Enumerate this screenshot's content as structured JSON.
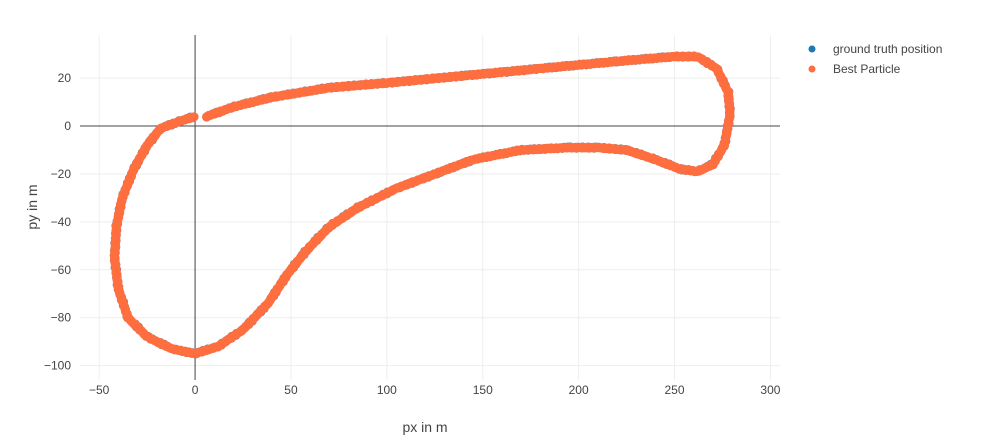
{
  "chart_data": {
    "type": "scatter",
    "xlabel": "px in m",
    "ylabel": "py in m",
    "xlim": [
      -60,
      305
    ],
    "ylim": [
      -106,
      38
    ],
    "x_ticks": [
      -50,
      0,
      50,
      100,
      150,
      200,
      250,
      300
    ],
    "y_ticks": [
      20,
      0,
      -20,
      -40,
      -60,
      -80,
      -100
    ],
    "x_tick_labels": [
      "−50",
      "0",
      "50",
      "100",
      "150",
      "200",
      "250",
      "300"
    ],
    "y_tick_labels": [
      "20",
      "0",
      "−20",
      "−40",
      "−60",
      "−80",
      "−100"
    ],
    "grid": true,
    "zero_lines": true,
    "legend_position": "top-right",
    "series": [
      {
        "name": "ground truth position",
        "color": "#1f77b4",
        "marker": "circle",
        "points": [
          [
            6,
            4
          ],
          [
            20,
            8
          ],
          [
            40,
            12
          ],
          [
            70,
            16
          ],
          [
            100,
            18
          ],
          [
            140,
            21
          ],
          [
            180,
            24
          ],
          [
            220,
            27
          ],
          [
            250,
            29
          ],
          [
            262,
            29
          ],
          [
            272,
            24
          ],
          [
            278,
            14
          ],
          [
            279,
            5
          ],
          [
            276,
            -8
          ],
          [
            270,
            -16
          ],
          [
            262,
            -19
          ],
          [
            253,
            -18
          ],
          [
            240,
            -14
          ],
          [
            225,
            -10
          ],
          [
            210,
            -9
          ],
          [
            195,
            -9
          ],
          [
            170,
            -10
          ],
          [
            145,
            -14
          ],
          [
            125,
            -20
          ],
          [
            105,
            -26
          ],
          [
            85,
            -34
          ],
          [
            70,
            -42
          ],
          [
            58,
            -52
          ],
          [
            48,
            -62
          ],
          [
            38,
            -74
          ],
          [
            25,
            -85
          ],
          [
            12,
            -92
          ],
          [
            0,
            -95
          ],
          [
            -12,
            -93
          ],
          [
            -25,
            -88
          ],
          [
            -35,
            -80
          ],
          [
            -40,
            -68
          ],
          [
            -42,
            -55
          ],
          [
            -41,
            -42
          ],
          [
            -38,
            -30
          ],
          [
            -32,
            -18
          ],
          [
            -25,
            -8
          ],
          [
            -18,
            -1
          ],
          [
            -8,
            2
          ],
          [
            0,
            4
          ]
        ]
      },
      {
        "name": "Best Particle",
        "color": "#ff6e3f",
        "marker": "circle",
        "points": [
          [
            6,
            4
          ],
          [
            20,
            8
          ],
          [
            40,
            12
          ],
          [
            70,
            16
          ],
          [
            100,
            18
          ],
          [
            140,
            21
          ],
          [
            180,
            24
          ],
          [
            220,
            27
          ],
          [
            250,
            29
          ],
          [
            262,
            29
          ],
          [
            272,
            24
          ],
          [
            278,
            14
          ],
          [
            279,
            5
          ],
          [
            276,
            -8
          ],
          [
            270,
            -16
          ],
          [
            262,
            -19
          ],
          [
            253,
            -18
          ],
          [
            240,
            -14
          ],
          [
            225,
            -10
          ],
          [
            210,
            -9
          ],
          [
            195,
            -9
          ],
          [
            170,
            -10
          ],
          [
            145,
            -14
          ],
          [
            125,
            -20
          ],
          [
            105,
            -26
          ],
          [
            85,
            -34
          ],
          [
            70,
            -42
          ],
          [
            58,
            -52
          ],
          [
            48,
            -62
          ],
          [
            38,
            -74
          ],
          [
            25,
            -85
          ],
          [
            12,
            -92
          ],
          [
            0,
            -95
          ],
          [
            -12,
            -93
          ],
          [
            -25,
            -88
          ],
          [
            -35,
            -80
          ],
          [
            -40,
            -68
          ],
          [
            -42,
            -55
          ],
          [
            -41,
            -42
          ],
          [
            -38,
            -30
          ],
          [
            -32,
            -18
          ],
          [
            -25,
            -8
          ],
          [
            -18,
            -1
          ],
          [
            -8,
            2
          ],
          [
            0,
            4
          ]
        ]
      }
    ]
  }
}
